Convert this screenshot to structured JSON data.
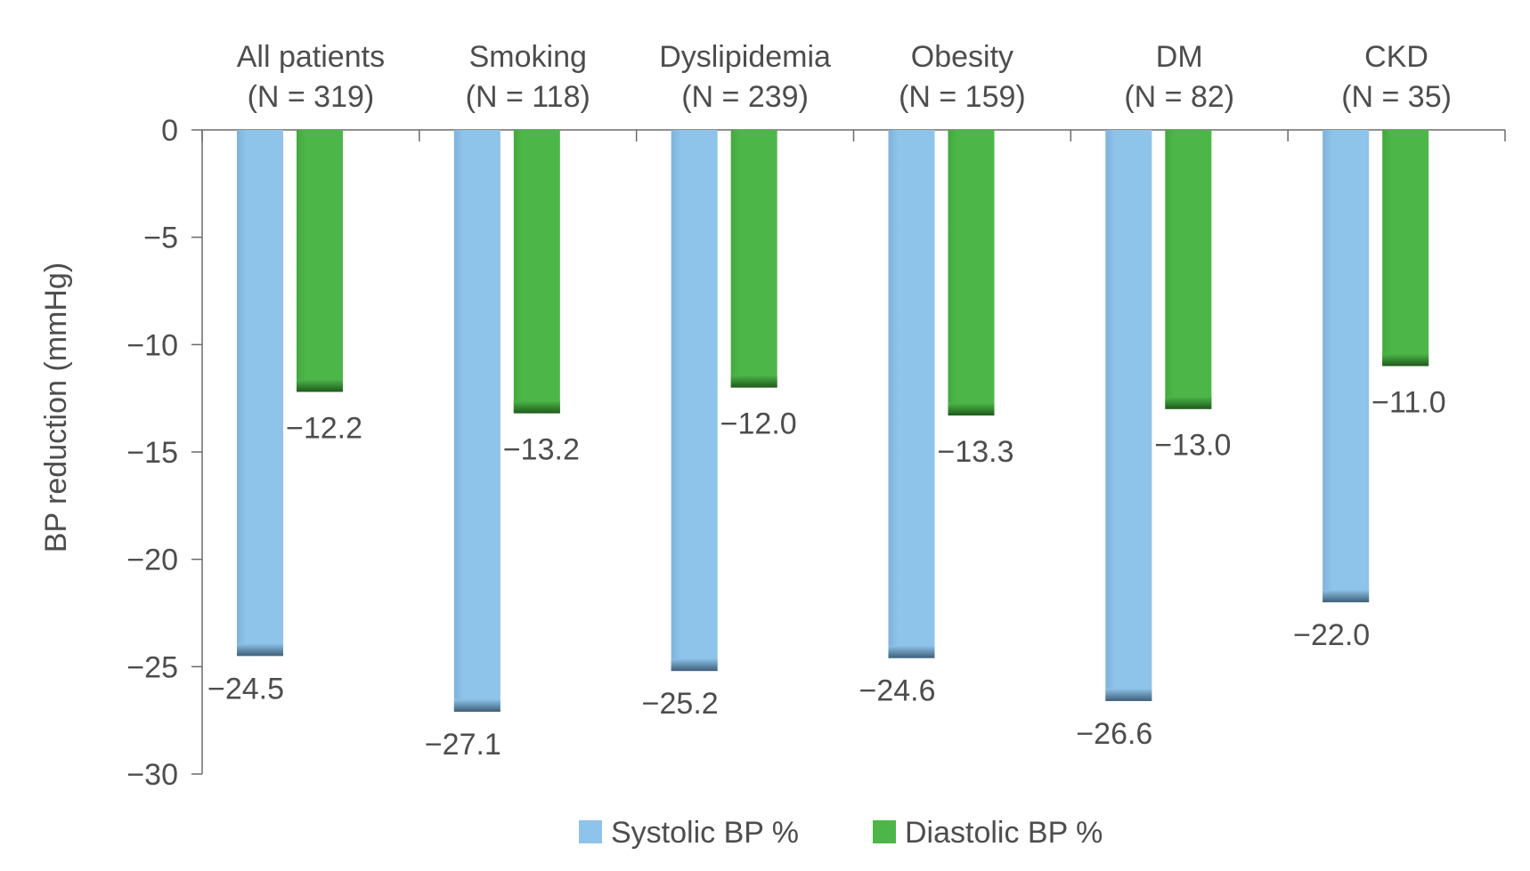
{
  "chart_data": {
    "type": "bar",
    "categories": [
      {
        "name": "All patients",
        "n": "(N = 319)"
      },
      {
        "name": "Smoking",
        "n": "(N = 118)"
      },
      {
        "name": "Dyslipidemia",
        "n": "(N = 239)"
      },
      {
        "name": "Obesity",
        "n": "(N = 159)"
      },
      {
        "name": "DM",
        "n": "(N = 82)"
      },
      {
        "name": "CKD",
        "n": "(N = 35)"
      }
    ],
    "series": [
      {
        "name": "Systolic BP %",
        "color": "#8ec3ea",
        "values": [
          -24.5,
          -27.1,
          -25.2,
          -24.6,
          -26.6,
          -22.0
        ],
        "labels": [
          "−24.5",
          "−27.1",
          "−25.2",
          "−24.6",
          "−26.6",
          "−22.0"
        ]
      },
      {
        "name": "Diastolic BP %",
        "color": "#4cb748",
        "values": [
          -12.2,
          -13.2,
          -12.0,
          -13.3,
          -13.0,
          -11.0
        ],
        "labels": [
          "−12.2",
          "−13.2",
          "−12.0",
          "−13.3",
          "−13.0",
          "−11.0"
        ]
      }
    ],
    "ylabel": "BP reduction (mmHg)",
    "xlabel": "",
    "ylim": [
      -30,
      0
    ],
    "yticks": [
      0,
      -5,
      -10,
      -15,
      -20,
      -25,
      -30
    ],
    "ytick_labels": [
      "0",
      "−5",
      "−10",
      "−15",
      "−20",
      "−25",
      "−30"
    ],
    "legend_position": "bottom",
    "grid": false
  }
}
